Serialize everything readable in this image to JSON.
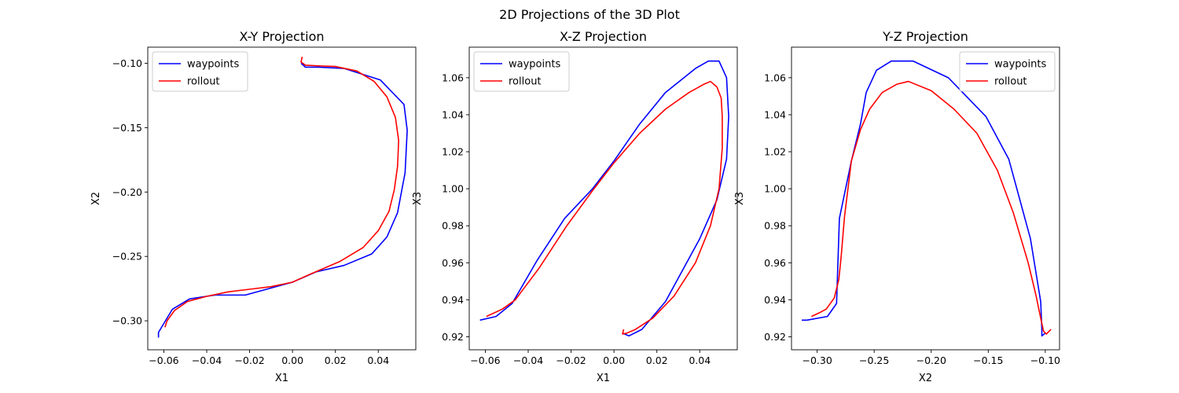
{
  "figure": {
    "title": "2D Projections of the 3D Plot"
  },
  "colors": {
    "waypoints": "#0000ff",
    "rollout": "#ff0000",
    "axes": "#000000",
    "legend_border": "#cccccc",
    "background": "#ffffff"
  },
  "chart_data": [
    {
      "type": "line",
      "title": "X-Y Projection",
      "xlabel": "X1",
      "ylabel": "X2",
      "xlim": [
        -0.0675,
        0.0575
      ],
      "ylim": [
        -0.3225,
        -0.0875
      ],
      "xticks": [
        -0.06,
        -0.04,
        -0.02,
        0.0,
        0.02,
        0.04
      ],
      "xtick_labels": [
        "−0.06",
        "−0.04",
        "−0.02",
        "0.00",
        "0.02",
        "0.04"
      ],
      "yticks": [
        -0.3,
        -0.25,
        -0.2,
        -0.15,
        -0.1
      ],
      "ytick_labels": [
        "−0.30",
        "−0.25",
        "−0.20",
        "−0.15",
        "−0.10"
      ],
      "legend": {
        "position": "upper-left"
      },
      "grid": false,
      "series": [
        {
          "name": "waypoints",
          "color": "#0000ff",
          "points": [
            [
              0.004,
              -0.1
            ],
            [
              0.006,
              -0.103
            ],
            [
              0.012,
              -0.103
            ],
            [
              0.024,
              -0.104
            ],
            [
              0.041,
              -0.113
            ],
            [
              0.052,
              -0.132
            ],
            [
              0.0535,
              -0.152
            ],
            [
              0.0525,
              -0.185
            ],
            [
              0.049,
              -0.216
            ],
            [
              0.044,
              -0.235
            ],
            [
              0.037,
              -0.248
            ],
            [
              0.024,
              -0.257
            ],
            [
              0.011,
              -0.262
            ],
            [
              0.0,
              -0.27
            ],
            [
              -0.022,
              -0.28
            ],
            [
              -0.036,
              -0.28
            ],
            [
              -0.048,
              -0.283
            ],
            [
              -0.056,
              -0.291
            ],
            [
              -0.0625,
              -0.309
            ],
            [
              -0.0625,
              -0.313
            ]
          ]
        },
        {
          "name": "rollout",
          "color": "#ff0000",
          "points": [
            [
              0.0045,
              -0.095
            ],
            [
              0.004,
              -0.099
            ],
            [
              0.006,
              -0.1015
            ],
            [
              0.012,
              -0.102
            ],
            [
              0.02,
              -0.1025
            ],
            [
              0.03,
              -0.106
            ],
            [
              0.038,
              -0.114
            ],
            [
              0.044,
              -0.126
            ],
            [
              0.048,
              -0.142
            ],
            [
              0.0495,
              -0.16
            ],
            [
              0.049,
              -0.18
            ],
            [
              0.0475,
              -0.198
            ],
            [
              0.045,
              -0.215
            ],
            [
              0.04,
              -0.23
            ],
            [
              0.033,
              -0.243
            ],
            [
              0.022,
              -0.254
            ],
            [
              0.008,
              -0.264
            ],
            [
              0.0,
              -0.27
            ],
            [
              -0.01,
              -0.2735
            ],
            [
              -0.02,
              -0.2755
            ],
            [
              -0.03,
              -0.2775
            ],
            [
              -0.04,
              -0.281
            ],
            [
              -0.049,
              -0.285
            ],
            [
              -0.055,
              -0.292
            ],
            [
              -0.0585,
              -0.3
            ],
            [
              -0.0595,
              -0.305
            ]
          ]
        }
      ]
    },
    {
      "type": "line",
      "title": "X-Z Projection",
      "xlabel": "X1",
      "ylabel": "X3",
      "xlim": [
        -0.0675,
        0.0575
      ],
      "ylim": [
        0.913,
        1.0765
      ],
      "xticks": [
        -0.06,
        -0.04,
        -0.02,
        0.0,
        0.02,
        0.04
      ],
      "xtick_labels": [
        "−0.06",
        "−0.04",
        "−0.02",
        "0.00",
        "0.02",
        "0.04"
      ],
      "yticks": [
        0.92,
        0.94,
        0.96,
        0.98,
        1.0,
        1.02,
        1.04,
        1.06
      ],
      "ytick_labels": [
        "0.92",
        "0.94",
        "0.96",
        "0.98",
        "1.00",
        "1.02",
        "1.04",
        "1.06"
      ],
      "legend": {
        "position": "upper-left"
      },
      "grid": false,
      "series": [
        {
          "name": "waypoints",
          "color": "#0000ff",
          "points": [
            [
              -0.0625,
              0.929
            ],
            [
              -0.055,
              0.931
            ],
            [
              -0.0475,
              0.938
            ],
            [
              -0.036,
              0.961
            ],
            [
              -0.023,
              0.984
            ],
            [
              -0.01,
              1.0
            ],
            [
              0.0,
              1.015
            ],
            [
              0.012,
              1.035
            ],
            [
              0.024,
              1.052
            ],
            [
              0.038,
              1.065
            ],
            [
              0.044,
              1.069
            ],
            [
              0.049,
              1.069
            ],
            [
              0.0525,
              1.06
            ],
            [
              0.0535,
              1.039
            ],
            [
              0.0525,
              1.016
            ],
            [
              0.048,
              0.994
            ],
            [
              0.04,
              0.973
            ],
            [
              0.024,
              0.939
            ],
            [
              0.013,
              0.924
            ],
            [
              0.007,
              0.9205
            ],
            [
              0.004,
              0.922
            ]
          ]
        },
        {
          "name": "rollout",
          "color": "#ff0000",
          "points": [
            [
              -0.0595,
              0.931
            ],
            [
              -0.052,
              0.935
            ],
            [
              -0.046,
              0.94
            ],
            [
              -0.035,
              0.957
            ],
            [
              -0.022,
              0.98
            ],
            [
              -0.01,
              0.999
            ],
            [
              0.0,
              1.014
            ],
            [
              0.012,
              1.03
            ],
            [
              0.024,
              1.043
            ],
            [
              0.035,
              1.052
            ],
            [
              0.042,
              1.0565
            ],
            [
              0.045,
              1.058
            ],
            [
              0.048,
              1.055
            ],
            [
              0.05,
              1.049
            ],
            [
              0.0505,
              1.039
            ],
            [
              0.0505,
              1.022
            ],
            [
              0.049,
              1.0
            ],
            [
              0.045,
              0.98
            ],
            [
              0.038,
              0.96
            ],
            [
              0.028,
              0.942
            ],
            [
              0.018,
              0.93
            ],
            [
              0.01,
              0.924
            ],
            [
              0.006,
              0.922
            ],
            [
              0.004,
              0.9215
            ],
            [
              0.0045,
              0.924
            ]
          ]
        }
      ]
    },
    {
      "type": "line",
      "title": "Y-Z Projection",
      "xlabel": "X2",
      "ylabel": "X3",
      "xlim": [
        -0.3225,
        -0.0875
      ],
      "ylim": [
        0.913,
        1.0765
      ],
      "xticks": [
        -0.3,
        -0.25,
        -0.2,
        -0.15,
        -0.1
      ],
      "xtick_labels": [
        "−0.30",
        "−0.25",
        "−0.20",
        "−0.15",
        "−0.10"
      ],
      "yticks": [
        0.92,
        0.94,
        0.96,
        0.98,
        1.0,
        1.02,
        1.04,
        1.06
      ],
      "ytick_labels": [
        "0.92",
        "0.94",
        "0.96",
        "0.98",
        "1.00",
        "1.02",
        "1.04",
        "1.06"
      ],
      "legend": {
        "position": "upper-right"
      },
      "grid": false,
      "series": [
        {
          "name": "waypoints",
          "color": "#0000ff",
          "points": [
            [
              -0.3135,
              0.929
            ],
            [
              -0.309,
              0.929
            ],
            [
              -0.291,
              0.931
            ],
            [
              -0.283,
              0.938
            ],
            [
              -0.2805,
              0.984
            ],
            [
              -0.27,
              1.015
            ],
            [
              -0.262,
              1.035
            ],
            [
              -0.257,
              1.052
            ],
            [
              -0.248,
              1.064
            ],
            [
              -0.235,
              1.069
            ],
            [
              -0.216,
              1.069
            ],
            [
              -0.185,
              1.06
            ],
            [
              -0.152,
              1.039
            ],
            [
              -0.132,
              1.016
            ],
            [
              -0.113,
              0.973
            ],
            [
              -0.104,
              0.939
            ],
            [
              -0.103,
              0.924
            ],
            [
              -0.103,
              0.9205
            ],
            [
              -0.1,
              0.922
            ]
          ]
        },
        {
          "name": "rollout",
          "color": "#ff0000",
          "points": [
            [
              -0.305,
              0.931
            ],
            [
              -0.298,
              0.933
            ],
            [
              -0.292,
              0.935
            ],
            [
              -0.285,
              0.941
            ],
            [
              -0.281,
              0.951
            ],
            [
              -0.279,
              0.963
            ],
            [
              -0.276,
              0.985
            ],
            [
              -0.27,
              1.015
            ],
            [
              -0.262,
              1.032
            ],
            [
              -0.254,
              1.043
            ],
            [
              -0.243,
              1.052
            ],
            [
              -0.23,
              1.0565
            ],
            [
              -0.22,
              1.058
            ],
            [
              -0.2,
              1.053
            ],
            [
              -0.18,
              1.043
            ],
            [
              -0.16,
              1.03
            ],
            [
              -0.142,
              1.01
            ],
            [
              -0.128,
              0.987
            ],
            [
              -0.115,
              0.96
            ],
            [
              -0.108,
              0.942
            ],
            [
              -0.104,
              0.93
            ],
            [
              -0.1015,
              0.923
            ],
            [
              -0.099,
              0.9215
            ],
            [
              -0.095,
              0.924
            ]
          ]
        }
      ]
    }
  ]
}
